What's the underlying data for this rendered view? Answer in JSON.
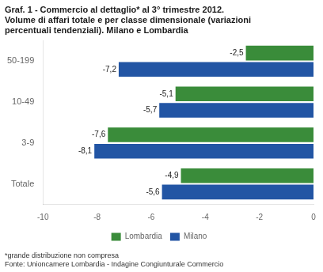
{
  "chart_data": {
    "type": "bar",
    "orientation": "horizontal",
    "title": [
      "Graf. 1 - Commercio al dettaglio* al 3° trimestre 2012.",
      "Volume di affari totale e per classe dimensionale (variazioni",
      "percentuali tendenziali). Milano e Lombardia"
    ],
    "annotations": [
      "*grande distribuzione non compresa",
      "Fonte: Unioncamere Lombardia - Indagine Congiunturale Commercio"
    ],
    "categories": [
      "Totale",
      "3-9",
      "10-49",
      "50-199"
    ],
    "series": [
      {
        "name": "Lombardia",
        "color": "#3a8c3a",
        "values": [
          -4.9,
          -7.6,
          -5.1,
          -2.5
        ],
        "value_labels": [
          "-4,9",
          "-7,6",
          "-5,1",
          "-2,5"
        ]
      },
      {
        "name": "Milano",
        "color": "#2255a4",
        "values": [
          -5.6,
          -8.1,
          -5.7,
          -7.2
        ],
        "value_labels": [
          "-5,6",
          "-8,1",
          "-5,7",
          "-7,2"
        ]
      }
    ],
    "xlim": [
      -10,
      0
    ],
    "xticks": [
      -10,
      -8,
      -6,
      -4,
      -2,
      0
    ],
    "grid": false,
    "legend": "bottom",
    "data_labels": true
  }
}
